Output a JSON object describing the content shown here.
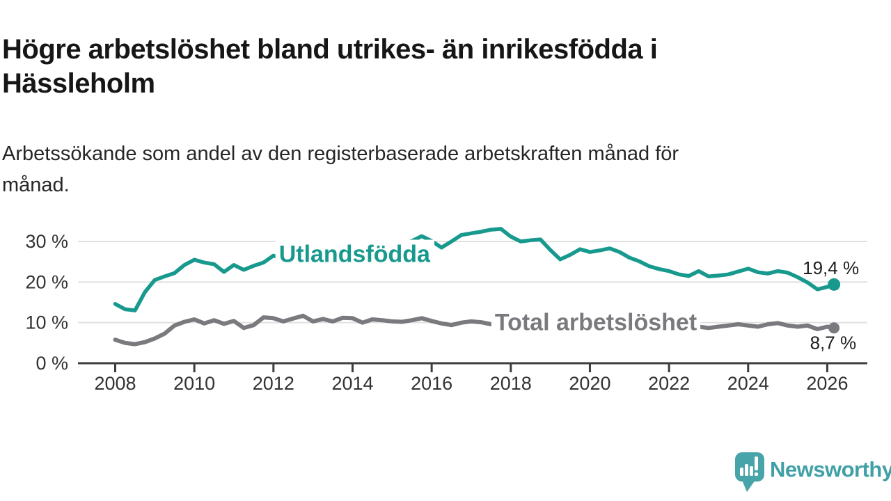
{
  "header": {
    "title": "Högre arbetslöshet bland utrikes- än inrikesfödda i Hässleholm",
    "subtitle": "Arbetssökande som andel av den registerbaserade arbetskraften månad för månad."
  },
  "chart_data": {
    "type": "line",
    "title": "Högre arbetslöshet bland utrikes- än inrikesfödda i Hässleholm",
    "subtitle": "Arbetssökande som andel av den registerbaserade arbetskraften månad för månad.",
    "xlabel": "",
    "ylabel": "",
    "unit": "%",
    "x_start": 2008,
    "x_step": 0.25,
    "xlim": [
      2007.1,
      2027.1
    ],
    "ylim": [
      0,
      34
    ],
    "grid": "horizontal",
    "legend_position": "inline-labels",
    "yticks": [
      {
        "value": 0,
        "label": "0 %"
      },
      {
        "value": 10,
        "label": "10 %"
      },
      {
        "value": 20,
        "label": "20 %"
      },
      {
        "value": 30,
        "label": "30 %"
      }
    ],
    "xticks": [
      {
        "value": 2008,
        "label": "2008"
      },
      {
        "value": 2010,
        "label": "2010"
      },
      {
        "value": 2012,
        "label": "2012"
      },
      {
        "value": 2014,
        "label": "2014"
      },
      {
        "value": 2016,
        "label": "2016"
      },
      {
        "value": 2018,
        "label": "2018"
      },
      {
        "value": 2020,
        "label": "2020"
      },
      {
        "value": 2022,
        "label": "2022"
      },
      {
        "value": 2024,
        "label": "2024"
      },
      {
        "value": 2026,
        "label": "2026"
      }
    ],
    "series": [
      {
        "id": "utlandsfodda",
        "name": "Utlandsfödda",
        "color": "#18998e",
        "stroke_width": 5.5,
        "values": [
          14.6,
          13.3,
          13.0,
          17.5,
          20.5,
          21.4,
          22.2,
          24.2,
          25.5,
          24.8,
          24.4,
          22.5,
          24.2,
          23.0,
          24.0,
          24.8,
          26.5,
          25.6,
          25.9,
          26.3,
          26.6,
          27.0,
          27.2,
          27.6,
          28.0,
          28.2,
          28.6,
          29.0,
          29.3,
          29.6,
          30.1,
          31.3,
          30.1,
          28.5,
          30.0,
          31.6,
          32.0,
          32.4,
          32.9,
          33.1,
          31.2,
          30.0,
          30.3,
          30.5,
          27.9,
          25.6,
          26.7,
          28.1,
          27.4,
          27.8,
          28.3,
          27.4,
          26.0,
          25.1,
          23.9,
          23.2,
          22.7,
          21.9,
          21.5,
          22.7,
          21.4,
          21.6,
          21.9,
          22.6,
          23.3,
          22.4,
          22.1,
          22.7,
          22.3,
          21.2,
          19.9,
          18.2,
          18.8
        ],
        "final_point": {
          "x": 2026.17,
          "value": 19.4,
          "label": "19,4 %"
        },
        "name_label_pos": {
          "x": 2014.05,
          "value": 27.0
        },
        "final_label_offset": {
          "dx": 36,
          "dy": -15
        }
      },
      {
        "id": "total-arbetsloshet",
        "name": "Total arbetslöshet",
        "color": "#7a7a7e",
        "stroke_width": 6,
        "values": [
          5.8,
          5.0,
          4.7,
          5.2,
          6.1,
          7.3,
          9.3,
          10.2,
          10.8,
          9.8,
          10.6,
          9.7,
          10.4,
          8.7,
          9.4,
          11.3,
          11.1,
          10.3,
          11.0,
          11.7,
          10.3,
          10.9,
          10.3,
          11.2,
          11.1,
          10.0,
          10.8,
          10.6,
          10.3,
          10.2,
          10.6,
          11.1,
          10.4,
          9.8,
          9.4,
          10.0,
          10.3,
          10.1,
          9.6,
          9.5,
          9.4,
          9.3,
          9.3,
          9.2,
          9.0,
          8.9,
          8.9,
          9.0,
          9.2,
          9.6,
          9.8,
          9.6,
          9.4,
          9.2,
          9.0,
          8.9,
          8.8,
          8.7,
          8.7,
          9.0,
          8.7,
          9.0,
          9.3,
          9.6,
          9.3,
          9.0,
          9.6,
          9.9,
          9.3,
          9.0,
          9.3,
          8.4,
          9.0
        ],
        "final_point": {
          "x": 2026.17,
          "value": 8.7,
          "label": "8,7 %"
        },
        "name_label_pos": {
          "x": 2020.15,
          "value": 10.2
        },
        "final_label_offset": {
          "dx": 32,
          "dy": 30
        }
      }
    ],
    "colors": {
      "grid": "#e0e0e0",
      "axis": "#3d3d3d",
      "tick_label": "#333333",
      "annotation": "#1d1d1d"
    }
  },
  "footer": {
    "brand": "Newsworthy",
    "brand_color": "#3fa0a6",
    "logo_icon": "newsworthy-speech-bubble-bar-chart-icon"
  }
}
